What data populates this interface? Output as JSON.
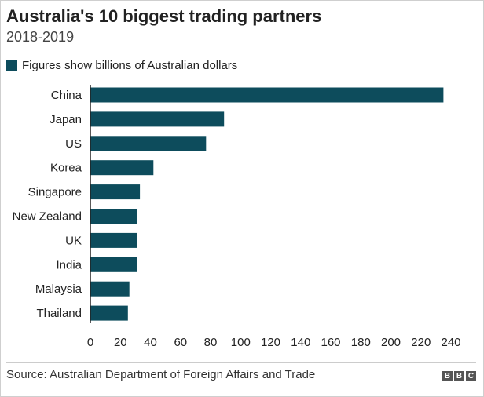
{
  "colors": {
    "bar": "#0d4c5c",
    "axis": "#222222",
    "text": "#222222"
  },
  "chart_data": {
    "type": "bar",
    "orientation": "horizontal",
    "title": "Australia's 10 biggest trading partners",
    "subtitle": "2018-2019",
    "legend_label": "Figures show billions of Australian dollars",
    "categories": [
      "China",
      "Japan",
      "US",
      "Korea",
      "Singapore",
      "New Zealand",
      "UK",
      "India",
      "Malaysia",
      "Thailand"
    ],
    "values": [
      235,
      89,
      77,
      42,
      33,
      31,
      31,
      31,
      26,
      25
    ],
    "xlim": [
      0,
      240
    ],
    "xticks": [
      0,
      20,
      40,
      60,
      80,
      100,
      120,
      140,
      160,
      180,
      200,
      220,
      240
    ],
    "grid": false,
    "legend_position": "top-left"
  },
  "footer": {
    "source": "Source: Australian Department of Foreign Affairs and Trade",
    "logo_letters": [
      "B",
      "B",
      "C"
    ]
  }
}
